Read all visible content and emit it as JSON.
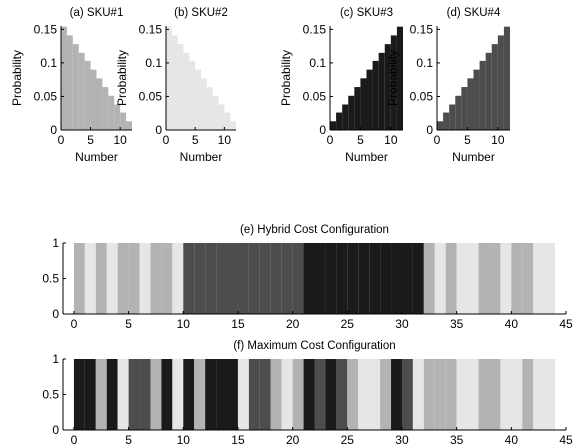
{
  "colors": {
    "sku1": "#b3b3b3",
    "sku2": "#e6e6e6",
    "sku3": "#1a1a1a",
    "sku4": "#4d4d4d",
    "axis": "#000000"
  },
  "chart_data": [
    {
      "id": "a",
      "type": "bar",
      "title": "(a) SKU#1",
      "xlabel": "Number",
      "ylabel": "Probability",
      "series_color": "sku1",
      "x": [
        0,
        1,
        2,
        3,
        4,
        5,
        6,
        7,
        8,
        9,
        10,
        11
      ],
      "values": [
        0.154,
        0.141,
        0.128,
        0.115,
        0.103,
        0.09,
        0.077,
        0.064,
        0.051,
        0.038,
        0.026,
        0.013
      ],
      "xlim": [
        0,
        12
      ],
      "ylim": [
        0,
        0.155
      ],
      "xticks": [
        "0",
        "5",
        "10"
      ],
      "xtick_values": [
        0,
        5,
        10
      ],
      "yticks": [
        "0",
        "0.05",
        "0.1",
        "0.15"
      ],
      "ytick_values": [
        0,
        0.05,
        0.1,
        0.15
      ],
      "show_ylabel": true
    },
    {
      "id": "b",
      "type": "bar",
      "title": "(b) SKU#2",
      "xlabel": "Number",
      "ylabel": "Probability",
      "series_color": "sku2",
      "x": [
        0,
        1,
        2,
        3,
        4,
        5,
        6,
        7,
        8,
        9,
        10,
        11
      ],
      "values": [
        0.154,
        0.141,
        0.128,
        0.115,
        0.103,
        0.09,
        0.077,
        0.064,
        0.051,
        0.038,
        0.026,
        0.013
      ],
      "xlim": [
        0,
        12
      ],
      "ylim": [
        0,
        0.155
      ],
      "xticks": [
        "0",
        "5",
        "10"
      ],
      "xtick_values": [
        0,
        5,
        10
      ],
      "yticks": [
        "0",
        "0.05",
        "0.1",
        "0.15"
      ],
      "ytick_values": [
        0,
        0.05,
        0.1,
        0.15
      ],
      "show_ylabel": true
    },
    {
      "id": "c",
      "type": "bar",
      "title": "(c) SKU#3",
      "xlabel": "Number",
      "ylabel": "Probability",
      "series_color": "sku3",
      "x": [
        0,
        1,
        2,
        3,
        4,
        5,
        6,
        7,
        8,
        9,
        10,
        11
      ],
      "values": [
        0.013,
        0.026,
        0.038,
        0.051,
        0.064,
        0.077,
        0.09,
        0.103,
        0.115,
        0.128,
        0.141,
        0.154
      ],
      "xlim": [
        0,
        12
      ],
      "ylim": [
        0,
        0.155
      ],
      "xticks": [
        "0",
        "5",
        "10"
      ],
      "xtick_values": [
        0,
        5,
        10
      ],
      "yticks": [
        "0",
        "0.05",
        "0.1",
        "0.15"
      ],
      "ytick_values": [
        0,
        0.05,
        0.1,
        0.15
      ],
      "show_ylabel": true
    },
    {
      "id": "d",
      "type": "bar",
      "title": "(d) SKU#4",
      "xlabel": "Number",
      "ylabel": "Probability",
      "series_color": "sku4",
      "x": [
        0,
        1,
        2,
        3,
        4,
        5,
        6,
        7,
        8,
        9,
        10,
        11
      ],
      "values": [
        0.013,
        0.026,
        0.038,
        0.051,
        0.064,
        0.077,
        0.09,
        0.103,
        0.115,
        0.128,
        0.141,
        0.154
      ],
      "xlim": [
        0,
        12
      ],
      "ylim": [
        0,
        0.155
      ],
      "xticks": [
        "0",
        "5",
        "10"
      ],
      "xtick_values": [
        0,
        5,
        10
      ],
      "yticks": [
        "0",
        "0.05",
        "0.1",
        "0.15"
      ],
      "ytick_values": [
        0,
        0.05,
        0.1,
        0.15
      ],
      "show_ylabel": true
    },
    {
      "id": "e",
      "type": "bar",
      "title": "(e) Hybrid Cost Configuration",
      "xlim": [
        -1,
        45
      ],
      "ylim": [
        0,
        1
      ],
      "xticks": [
        "0",
        "5",
        "10",
        "15",
        "20",
        "25",
        "30",
        "35",
        "40",
        "45"
      ],
      "xtick_values": [
        0,
        5,
        10,
        15,
        20,
        25,
        30,
        35,
        40,
        45
      ],
      "yticks": [
        "0",
        "0.5",
        "1"
      ],
      "ytick_values": [
        0,
        0.5,
        1
      ],
      "value": 1,
      "slot_colors": [
        "sku1",
        "sku2",
        "sku1",
        "sku2",
        "sku1",
        "sku1",
        "sku2",
        "sku1",
        "sku1",
        "sku2",
        "sku4",
        "sku4",
        "sku4",
        "sku4",
        "sku4",
        "sku4",
        "sku4",
        "sku4",
        "sku4",
        "sku4",
        "sku4",
        "sku3",
        "sku3",
        "sku3",
        "sku3",
        "sku3",
        "sku3",
        "sku3",
        "sku3",
        "sku3",
        "sku3",
        "sku3",
        "sku1",
        "sku2",
        "sku1",
        "sku2",
        "sku2",
        "sku1",
        "sku1",
        "sku2",
        "sku1",
        "sku1",
        "sku2",
        "sku2"
      ]
    },
    {
      "id": "f",
      "type": "bar",
      "title": "(f) Maximum Cost Configuration",
      "xlim": [
        -1,
        45
      ],
      "ylim": [
        0,
        1
      ],
      "xticks": [
        "0",
        "5",
        "10",
        "15",
        "20",
        "25",
        "30",
        "35",
        "40",
        "45"
      ],
      "xtick_values": [
        0,
        5,
        10,
        15,
        20,
        25,
        30,
        35,
        40,
        45
      ],
      "yticks": [
        "0",
        "0.5",
        "1"
      ],
      "ytick_values": [
        0,
        0.5,
        1
      ],
      "value": 1,
      "slot_colors": [
        "sku3",
        "sku3",
        "sku1",
        "sku3",
        "sku2",
        "sku4",
        "sku4",
        "sku1",
        "sku3",
        "sku2",
        "sku3",
        "sku1",
        "sku3",
        "sku3",
        "sku3",
        "sku2",
        "sku4",
        "sku4",
        "sku1",
        "sku2",
        "sku1",
        "sku3",
        "sku4",
        "sku3",
        "sku4",
        "sku1",
        "sku2",
        "sku2",
        "sku1",
        "sku3",
        "sku4",
        "sku2",
        "sku1",
        "sku1",
        "sku1",
        "sku2",
        "sku2",
        "sku1",
        "sku1",
        "sku2",
        "sku2",
        "sku1",
        "sku2",
        "sku2"
      ]
    }
  ]
}
